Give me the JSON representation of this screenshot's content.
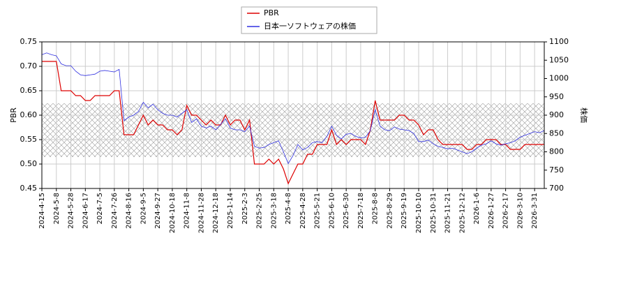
{
  "chart_data": {
    "type": "line",
    "legend": "upper center",
    "grid": true,
    "ylabel": "PBR",
    "y2label": "株価",
    "ylim": [
      0.45,
      0.75
    ],
    "yticks": [
      0.45,
      {
        "value": 0.5,
        "label": "0.50"
      },
      0.55,
      {
        "value": 0.6,
        "label": "0.60"
      },
      0.65,
      {
        "value": 0.7,
        "label": "0.70"
      },
      0.75
    ],
    "y2lim": [
      700,
      1100
    ],
    "y2ticks": [
      700,
      750,
      800,
      850,
      900,
      950,
      1000,
      1050,
      1100
    ],
    "categories": [
      "2024-4-15",
      null,
      null,
      "2024-5-8",
      null,
      null,
      "2024-5-28",
      null,
      null,
      "2024-6-17",
      null,
      null,
      "2024-7-5",
      null,
      null,
      "2024-7-26",
      null,
      null,
      "2024-8-16",
      null,
      null,
      "2024-9-5",
      null,
      null,
      "2024-9-27",
      null,
      null,
      "2024-10-18",
      null,
      null,
      "2024-11-8",
      null,
      null,
      "2024-11-28",
      null,
      null,
      "2024-12-18",
      null,
      null,
      "2025-1-14",
      null,
      null,
      "2025-2-3",
      null,
      null,
      "2025-2-25",
      null,
      null,
      "2025-3-18",
      null,
      null,
      "2025-4-8",
      null,
      null,
      "2025-4-28",
      null,
      null,
      "2025-5-21",
      null,
      null,
      "2025-6-10",
      null,
      null,
      "2025-6-30",
      null,
      null,
      "2025-7-18",
      null,
      null,
      "2025-8-8",
      null,
      null,
      "2025-8-29",
      null,
      null,
      "2025-9-19",
      null,
      null,
      "2025-10-10",
      null,
      null,
      "2025-10-31",
      null,
      null,
      "2025-11-21",
      null,
      null,
      "2025-12-12",
      null,
      null,
      "2026-1-6",
      null,
      null,
      "2026-1-27",
      null,
      null,
      "2026-2-17",
      null,
      null,
      "2026-3-10",
      null,
      null,
      "2026-3-31",
      null,
      null
    ],
    "series": [
      {
        "name": "PBR",
        "color": "#dd0000",
        "axis": "y",
        "values": [
          0.71,
          0.71,
          0.71,
          0.71,
          0.65,
          0.65,
          0.65,
          0.64,
          0.64,
          0.63,
          0.63,
          0.64,
          0.64,
          0.64,
          0.64,
          0.65,
          0.65,
          0.56,
          0.56,
          0.56,
          0.58,
          0.6,
          0.58,
          0.59,
          0.58,
          0.58,
          0.57,
          0.57,
          0.56,
          0.57,
          0.62,
          0.6,
          0.6,
          0.59,
          0.58,
          0.59,
          0.58,
          0.58,
          0.6,
          0.58,
          0.59,
          0.59,
          0.57,
          0.59,
          0.5,
          0.5,
          0.5,
          0.51,
          0.5,
          0.51,
          0.49,
          0.46,
          0.48,
          0.5,
          0.5,
          0.52,
          0.52,
          0.54,
          0.54,
          0.54,
          0.57,
          0.54,
          0.55,
          0.54,
          0.55,
          0.55,
          0.55,
          0.54,
          0.57,
          0.63,
          0.59,
          0.59,
          0.59,
          0.59,
          0.6,
          0.6,
          0.59,
          0.59,
          0.58,
          0.56,
          0.57,
          0.57,
          0.55,
          0.54,
          0.54,
          0.54,
          0.54,
          0.54,
          0.53,
          0.53,
          0.54,
          0.54,
          0.55,
          0.55,
          0.55,
          0.54,
          0.54,
          0.53,
          0.53,
          0.53,
          0.54,
          0.54,
          0.54,
          0.54,
          0.54
        ]
      },
      {
        "name": "日本一ソフトウェアの株価",
        "color": "#3030e0",
        "axis": "y2",
        "values": [
          1065,
          1070,
          1065,
          1062,
          1040,
          1035,
          1035,
          1020,
          1010,
          1008,
          1010,
          1012,
          1020,
          1022,
          1020,
          1018,
          1025,
          885,
          895,
          900,
          910,
          935,
          920,
          930,
          915,
          905,
          900,
          900,
          895,
          905,
          915,
          880,
          890,
          870,
          865,
          870,
          860,
          875,
          890,
          865,
          860,
          860,
          855,
          870,
          815,
          810,
          812,
          820,
          825,
          830,
          800,
          768,
          790,
          820,
          805,
          812,
          825,
          828,
          825,
          842,
          870,
          845,
          835,
          848,
          850,
          842,
          838,
          840,
          858,
          915,
          870,
          860,
          858,
          868,
          862,
          860,
          858,
          850,
          828,
          828,
          832,
          822,
          815,
          812,
          808,
          810,
          805,
          800,
          795,
          800,
          810,
          818,
          822,
          830,
          822,
          818,
          822,
          825,
          830,
          840,
          845,
          850,
          855,
          852,
          858
        ]
      }
    ]
  }
}
